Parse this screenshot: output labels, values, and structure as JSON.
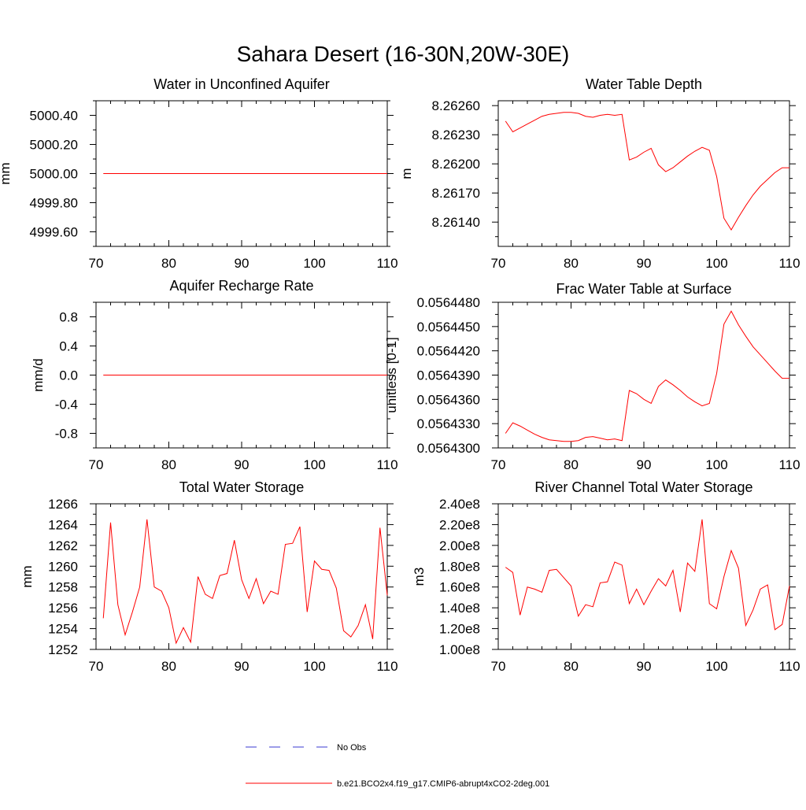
{
  "title": "Sahara Desert (16-30N,20W-30E)",
  "colors": {
    "model": "#ff0000",
    "obs": "#3a3ad0",
    "axis": "#000000"
  },
  "legend": {
    "obs_label": "No Obs",
    "model_label": "b.e21.BCO2x4.f19_g17.CMIP6-abrupt4xCO2-2deg.001"
  },
  "chart_data": [
    {
      "type": "line",
      "title": "Water in Unconfined Aquifer",
      "xlabel": "",
      "ylabel": "mm",
      "xlim": [
        70,
        110
      ],
      "ylim": [
        4999.5,
        5000.5
      ],
      "xticks": [
        70,
        80,
        90,
        100,
        110
      ],
      "xtick_labels": [
        "70",
        "80",
        "90",
        "100",
        "110"
      ],
      "yticks": [
        4999.6,
        4999.8,
        5000.0,
        5000.2,
        5000.4
      ],
      "ytick_labels": [
        "4999.60",
        "4999.80",
        "5000.00",
        "5000.20",
        "5000.40"
      ],
      "grid": false,
      "x": [
        71,
        72,
        73,
        74,
        75,
        76,
        77,
        78,
        79,
        80,
        81,
        82,
        83,
        84,
        85,
        86,
        87,
        88,
        89,
        90,
        91,
        92,
        93,
        94,
        95,
        96,
        97,
        98,
        99,
        100,
        101,
        102,
        103,
        104,
        105,
        106,
        107,
        108,
        109,
        110
      ],
      "series": [
        {
          "values": [
            5000,
            5000,
            5000,
            5000,
            5000,
            5000,
            5000,
            5000,
            5000,
            5000,
            5000,
            5000,
            5000,
            5000,
            5000,
            5000,
            5000,
            5000,
            5000,
            5000,
            5000,
            5000,
            5000,
            5000,
            5000,
            5000,
            5000,
            5000,
            5000,
            5000,
            5000,
            5000,
            5000,
            5000,
            5000,
            5000,
            5000,
            5000,
            5000,
            5000
          ]
        }
      ]
    },
    {
      "type": "line",
      "title": "Water Table Depth",
      "xlabel": "",
      "ylabel": "m",
      "xlim": [
        70,
        110
      ],
      "ylim": [
        8.26115,
        8.26265
      ],
      "xticks": [
        70,
        80,
        90,
        100,
        110
      ],
      "xtick_labels": [
        "70",
        "80",
        "90",
        "100",
        "110"
      ],
      "yticks": [
        8.2614,
        8.2617,
        8.262,
        8.2623,
        8.2626
      ],
      "ytick_labels": [
        "8.26140",
        "8.26170",
        "8.26200",
        "8.26230",
        "8.26260"
      ],
      "grid": false,
      "x": [
        71,
        72,
        73,
        74,
        75,
        76,
        77,
        78,
        79,
        80,
        81,
        82,
        83,
        84,
        85,
        86,
        87,
        88,
        89,
        90,
        91,
        92,
        93,
        94,
        95,
        96,
        97,
        98,
        99,
        100,
        101,
        102,
        103,
        104,
        105,
        106,
        107,
        108,
        109,
        110
      ],
      "series": [
        {
          "values": [
            8.26244,
            8.26233,
            8.26237,
            8.26241,
            8.26245,
            8.26249,
            8.26251,
            8.26252,
            8.26253,
            8.26253,
            8.26252,
            8.26249,
            8.26248,
            8.2625,
            8.26251,
            8.2625,
            8.26251,
            8.26204,
            8.26207,
            8.26212,
            8.26216,
            8.26199,
            8.26192,
            8.26196,
            8.26202,
            8.26208,
            8.26213,
            8.26217,
            8.26214,
            8.26187,
            8.26144,
            8.26132,
            8.26145,
            8.26157,
            8.26168,
            8.26177,
            8.26184,
            8.26191,
            8.26196,
            8.26196
          ]
        }
      ]
    },
    {
      "type": "line",
      "title": "Aquifer Recharge Rate",
      "xlabel": "",
      "ylabel": "mm/d",
      "xlim": [
        70,
        110
      ],
      "ylim": [
        -1.0,
        1.0
      ],
      "xticks": [
        70,
        80,
        90,
        100,
        110
      ],
      "xtick_labels": [
        "70",
        "80",
        "90",
        "100",
        "110"
      ],
      "yticks": [
        -0.8,
        -0.4,
        0.0,
        0.4,
        0.8
      ],
      "ytick_labels": [
        "-0.8",
        "-0.4",
        "0.0",
        "0.4",
        "0.8"
      ],
      "grid": false,
      "x": [
        71,
        72,
        73,
        74,
        75,
        76,
        77,
        78,
        79,
        80,
        81,
        82,
        83,
        84,
        85,
        86,
        87,
        88,
        89,
        90,
        91,
        92,
        93,
        94,
        95,
        96,
        97,
        98,
        99,
        100,
        101,
        102,
        103,
        104,
        105,
        106,
        107,
        108,
        109,
        110
      ],
      "series": [
        {
          "values": [
            0,
            0,
            0,
            0,
            0,
            0,
            0,
            0,
            0,
            0,
            0,
            0,
            0,
            0,
            0,
            0,
            0,
            0,
            0,
            0,
            0,
            0,
            0,
            0,
            0,
            0,
            0,
            0,
            0,
            0,
            0,
            0,
            0,
            0,
            0,
            0,
            0,
            0,
            0,
            0
          ]
        }
      ]
    },
    {
      "type": "line",
      "title": "Frac Water Table at Surface",
      "xlabel": "",
      "ylabel": "unitless [0-1]",
      "xlim": [
        70,
        110
      ],
      "ylim": [
        0.05643,
        0.056448
      ],
      "xticks": [
        70,
        80,
        90,
        100,
        110
      ],
      "xtick_labels": [
        "70",
        "80",
        "90",
        "100",
        "110"
      ],
      "yticks": [
        0.05643,
        0.056433,
        0.056436,
        0.056439,
        0.056442,
        0.056445,
        0.056448
      ],
      "ytick_labels": [
        "0.0564300",
        "0.0564330",
        "0.0564360",
        "0.0564390",
        "0.0564420",
        "0.0564450",
        "0.0564480"
      ],
      "grid": false,
      "x": [
        71,
        72,
        73,
        74,
        75,
        76,
        77,
        78,
        79,
        80,
        81,
        82,
        83,
        84,
        85,
        86,
        87,
        88,
        89,
        90,
        91,
        92,
        93,
        94,
        95,
        96,
        97,
        98,
        99,
        100,
        101,
        102,
        103,
        104,
        105,
        106,
        107,
        108,
        109,
        110
      ],
      "series": [
        {
          "values": [
            0.0564318,
            0.0564331,
            0.0564327,
            0.0564322,
            0.0564317,
            0.0564313,
            0.056431,
            0.0564309,
            0.0564308,
            0.0564308,
            0.0564309,
            0.0564313,
            0.0564314,
            0.0564312,
            0.056431,
            0.0564311,
            0.0564309,
            0.0564371,
            0.0564367,
            0.056436,
            0.0564355,
            0.0564376,
            0.0564384,
            0.0564378,
            0.0564371,
            0.0564363,
            0.0564357,
            0.0564352,
            0.0564355,
            0.0564392,
            0.0564453,
            0.0564469,
            0.0564452,
            0.0564438,
            0.0564425,
            0.0564415,
            0.0564405,
            0.0564395,
            0.0564386,
            0.0564386
          ]
        }
      ]
    },
    {
      "type": "line",
      "title": "Total Water Storage",
      "xlabel": "",
      "ylabel": "mm",
      "xlim": [
        70,
        110
      ],
      "ylim": [
        1252,
        1266
      ],
      "xticks": [
        70,
        80,
        90,
        100,
        110
      ],
      "xtick_labels": [
        "70",
        "80",
        "90",
        "100",
        "110"
      ],
      "yticks": [
        1252,
        1254,
        1256,
        1258,
        1260,
        1262,
        1264,
        1266
      ],
      "ytick_labels": [
        "1252",
        "1254",
        "1256",
        "1258",
        "1260",
        "1262",
        "1264",
        "1266"
      ],
      "grid": false,
      "x": [
        71,
        72,
        73,
        74,
        75,
        76,
        77,
        78,
        79,
        80,
        81,
        82,
        83,
        84,
        85,
        86,
        87,
        88,
        89,
        90,
        91,
        92,
        93,
        94,
        95,
        96,
        97,
        98,
        99,
        100,
        101,
        102,
        103,
        104,
        105,
        106,
        107,
        108,
        109,
        110
      ],
      "series": [
        {
          "values": [
            1255.0,
            1264.2,
            1256.3,
            1253.4,
            1255.6,
            1258.0,
            1264.5,
            1258.0,
            1257.6,
            1256.0,
            1252.6,
            1254.1,
            1252.7,
            1259.0,
            1257.3,
            1256.9,
            1259.1,
            1259.3,
            1262.5,
            1258.7,
            1256.9,
            1258.8,
            1256.4,
            1257.6,
            1257.3,
            1262.1,
            1262.2,
            1263.8,
            1255.6,
            1260.5,
            1259.7,
            1259.6,
            1257.9,
            1253.8,
            1253.2,
            1254.3,
            1256.3,
            1253.0,
            1263.7,
            1257.2
          ]
        }
      ]
    },
    {
      "type": "line",
      "title": "River Channel Total Water Storage",
      "xlabel": "",
      "ylabel": "m3",
      "xlim": [
        70,
        110
      ],
      "ylim": [
        100000000,
        240000000
      ],
      "xticks": [
        70,
        80,
        90,
        100,
        110
      ],
      "xtick_labels": [
        "70",
        "80",
        "90",
        "100",
        "110"
      ],
      "yticks": [
        100000000,
        120000000,
        140000000,
        160000000,
        180000000,
        200000000,
        220000000,
        240000000
      ],
      "ytick_labels": [
        "1.00e8",
        "1.20e8",
        "1.40e8",
        "1.60e8",
        "1.80e8",
        "2.00e8",
        "2.20e8",
        "2.40e8"
      ],
      "grid": false,
      "x": [
        71,
        72,
        73,
        74,
        75,
        76,
        77,
        78,
        79,
        80,
        81,
        82,
        83,
        84,
        85,
        86,
        87,
        88,
        89,
        90,
        91,
        92,
        93,
        94,
        95,
        96,
        97,
        98,
        99,
        100,
        101,
        102,
        103,
        104,
        105,
        106,
        107,
        108,
        109,
        110
      ],
      "series": [
        {
          "values": [
            179000000,
            174000000,
            133000000,
            160000000,
            158000000,
            155000000,
            176000000,
            177000000,
            169000000,
            161000000,
            132000000,
            143000000,
            141000000,
            164000000,
            165000000,
            184000000,
            181000000,
            144000000,
            158000000,
            143000000,
            156000000,
            168000000,
            161000000,
            176000000,
            136000000,
            183000000,
            175000000,
            225000000,
            144000000,
            139000000,
            170000000,
            195000000,
            178000000,
            123000000,
            138000000,
            158000000,
            162000000,
            119000000,
            124000000,
            161000000
          ]
        }
      ]
    }
  ]
}
